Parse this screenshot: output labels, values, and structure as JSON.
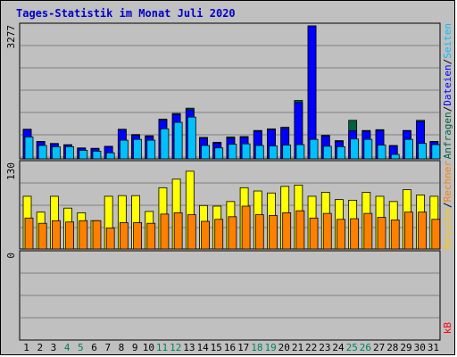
{
  "chart_data": {
    "type": "bar",
    "title": "Tages-Statistik im Monat Juli 2020",
    "categories": [
      "1",
      "2",
      "3",
      "4",
      "5",
      "6",
      "7",
      "8",
      "9",
      "10",
      "11",
      "12",
      "13",
      "14",
      "15",
      "16",
      "17",
      "18",
      "19",
      "20",
      "21",
      "22",
      "23",
      "24",
      "25",
      "26",
      "27",
      "28",
      "29",
      "30",
      "31"
    ],
    "weekend_days": [
      "4",
      "5",
      "11",
      "12",
      "18",
      "19",
      "25",
      "26"
    ],
    "panels": [
      {
        "max_label": "3277",
        "ylim": [
          0,
          3277
        ],
        "grid": true,
        "series": [
          {
            "name": "Anfragen",
            "color": "#006040",
            "values": [
              730,
              430,
              380,
              350,
              270,
              260,
              310,
              730,
              600,
              570,
              980,
              1120,
              1250,
              530,
              410,
              540,
              550,
              700,
              740,
              780,
              1440,
              3277,
              580,
              450,
              950,
              700,
              720,
              330,
              700,
              950,
              430
            ]
          },
          {
            "name": "Dateien",
            "color": "#0000ff",
            "values": [
              720,
              420,
              370,
              340,
              260,
              250,
              300,
              720,
              580,
              550,
              950,
              1090,
              1210,
              510,
              390,
              510,
              530,
              680,
              720,
              750,
              1390,
              3277,
              560,
              430,
              690,
              680,
              700,
              320,
              690,
              920,
              420
            ]
          },
          {
            "name": "Seiten",
            "color": "#00c0ff",
            "values": [
              540,
              330,
              300,
              300,
              210,
              190,
              150,
              460,
              480,
              460,
              740,
              900,
              1030,
              330,
              270,
              360,
              370,
              330,
              320,
              340,
              350,
              480,
              310,
              300,
              490,
              480,
              340,
              110,
              480,
              380,
              350
            ]
          }
        ]
      },
      {
        "max_label": "130",
        "ylim": [
          0,
          130
        ],
        "grid": true,
        "series": [
          {
            "name": "Besuche",
            "color": "#ffff00",
            "values": [
              80,
              56,
              80,
              62,
              55,
              43,
              80,
              81,
              81,
              57,
              93,
              106,
              118,
              66,
              65,
              72,
              93,
              88,
              85,
              95,
              97,
              80,
              86,
              75,
              74,
              86,
              80,
              72,
              90,
              82,
              80
            ]
          },
          {
            "name": "Rechner",
            "color": "#ff8000",
            "values": [
              47,
              39,
              43,
              41,
              43,
              43,
              32,
              40,
              40,
              39,
              53,
              55,
              52,
              42,
              45,
              49,
              65,
              52,
              51,
              55,
              58,
              47,
              54,
              45,
              46,
              54,
              48,
              44,
              56,
              56,
              45
            ]
          }
        ]
      },
      {
        "max_label": "0",
        "ylim": [
          0,
          1
        ],
        "grid": true,
        "series": [
          {
            "name": "kB",
            "color": "#ff0000",
            "values": [
              0,
              0,
              0,
              0,
              0,
              0,
              0,
              0,
              0,
              0,
              0,
              0,
              0,
              0,
              0,
              0,
              0,
              0,
              0,
              0,
              0,
              0,
              0,
              0,
              0,
              0,
              0,
              0,
              0,
              0,
              0
            ]
          }
        ]
      }
    ],
    "right_legend": [
      {
        "text": "Anfragen",
        "color": "#006040"
      },
      {
        "text": "/",
        "color": "#000000"
      },
      {
        "text": "Dateien",
        "color": "#0000ff"
      },
      {
        "text": "/",
        "color": "#000000"
      },
      {
        "text": "Seiten",
        "color": "#00c0ff"
      },
      {
        "text": "Besuche",
        "color": "#ffc800"
      },
      {
        "text": "/",
        "color": "#000000"
      },
      {
        "text": "Rechner",
        "color": "#ff8000"
      },
      {
        "text": "kB",
        "color": "#ff0000"
      }
    ],
    "label_colors": {
      "weekday": "#000000",
      "weekend": "#00805c",
      "title": "#0000c8"
    }
  }
}
